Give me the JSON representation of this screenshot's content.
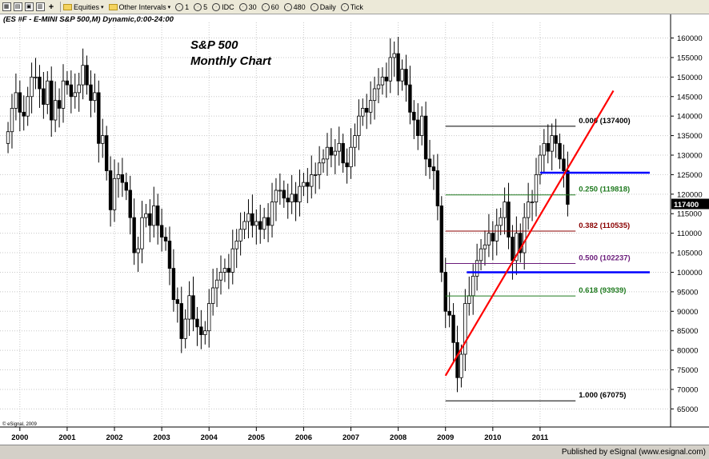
{
  "toolbar": {
    "items": [
      {
        "label": "Equities",
        "icon": "folder-icon",
        "dropdown": true
      },
      {
        "label": "Other Intervals",
        "icon": "folder-icon",
        "dropdown": true
      },
      {
        "label": "1",
        "icon": "interval-icon"
      },
      {
        "label": "5",
        "icon": "interval-icon"
      },
      {
        "label": "IDC",
        "icon": "interval-icon"
      },
      {
        "label": "30",
        "icon": "interval-icon"
      },
      {
        "label": "60",
        "icon": "interval-icon"
      },
      {
        "label": "480",
        "icon": "interval-icon"
      },
      {
        "label": "Daily",
        "icon": "interval-icon"
      },
      {
        "label": "Tick",
        "icon": "interval-icon"
      }
    ]
  },
  "footer": {
    "text": "Published by eSignal (www.esignal.com)"
  },
  "chart_data": {
    "type": "candlestick",
    "header": "(ES #F - E-MINI S&P 500,M) Dynamic,0:00-24:00",
    "title_line1": "S&P 500",
    "title_line2": "Monthly Chart",
    "copyright": "© eSignal, 2009",
    "last_price_label": "117400",
    "ylim": [
      62000,
      164000
    ],
    "yticks": [
      65000,
      70000,
      75000,
      80000,
      85000,
      90000,
      95000,
      100000,
      105000,
      110000,
      115000,
      120000,
      125000,
      130000,
      135000,
      140000,
      145000,
      150000,
      155000,
      160000
    ],
    "xticks": [
      "2000",
      "2001",
      "2002",
      "2003",
      "2004",
      "2005",
      "2006",
      "2007",
      "2008",
      "2009",
      "2010",
      "2011"
    ],
    "start_year": 1999.75,
    "months_per_year": 12,
    "closes": [
      136000,
      142000,
      146000,
      141000,
      140000,
      145000,
      150000,
      150000,
      147000,
      143000,
      149000,
      139000,
      144000,
      142000,
      149000,
      148000,
      145000,
      146000,
      148000,
      153000,
      148000,
      144000,
      146000,
      133000,
      135000,
      126000,
      116000,
      124000,
      125000,
      123000,
      121000,
      114000,
      105000,
      106000,
      114000,
      115000,
      112000,
      117000,
      112000,
      109000,
      108000,
      101000,
      93000,
      92000,
      83000,
      88000,
      94000,
      88000,
      86000,
      84000,
      85000,
      92000,
      96000,
      98000,
      100000,
      101000,
      100000,
      106000,
      108000,
      111000,
      113000,
      115000,
      112000,
      113000,
      111000,
      114000,
      112000,
      118000,
      121000,
      121000,
      119000,
      118000,
      120000,
      118000,
      122000,
      123000,
      122000,
      125000,
      125000,
      128000,
      129000,
      132000,
      130000,
      131000,
      133000,
      128000,
      127000,
      132000,
      135000,
      140000,
      142000,
      141000,
      144000,
      147000,
      148000,
      150000,
      149000,
      155000,
      156000,
      149000,
      152000,
      148000,
      141000,
      139000,
      135000,
      140000,
      129000,
      127000,
      126000,
      117000,
      100000,
      90000,
      89000,
      82000,
      73000,
      79000,
      92000,
      94000,
      99000,
      103000,
      106000,
      107000,
      110000,
      108000,
      112000,
      114000,
      118000,
      109000,
      103000,
      110000,
      105000,
      114000,
      118000,
      118000,
      125000,
      130000,
      133000,
      131000,
      135000,
      133000,
      129000,
      126000,
      117400
    ],
    "fib_levels": [
      {
        "label": "0.000 (137400)",
        "value": 137400,
        "color": "#000000"
      },
      {
        "label": "0.250 (119818)",
        "value": 119818,
        "color": "#1f7a1f"
      },
      {
        "label": "0.382 (110535)",
        "value": 110535,
        "color": "#8b0000"
      },
      {
        "label": "0.500 (102237)",
        "value": 102237,
        "color": "#6a1b7a"
      },
      {
        "label": "0.618 (93939)",
        "value": 93939,
        "color": "#1f7a1f"
      },
      {
        "label": "1.000 (67075)",
        "value": 67075,
        "color": "#000000"
      }
    ],
    "fib_x_range": [
      2009.0,
      2011.75
    ],
    "blue_lines": [
      {
        "value": 125500,
        "x_range": [
          2011.0,
          2013.5
        ]
      },
      {
        "value": 100000,
        "x_range": [
          2009.45,
          2013.5
        ]
      }
    ],
    "trendline": {
      "from": [
        2009.0,
        73500
      ],
      "to": [
        2012.55,
        146500
      ]
    }
  }
}
